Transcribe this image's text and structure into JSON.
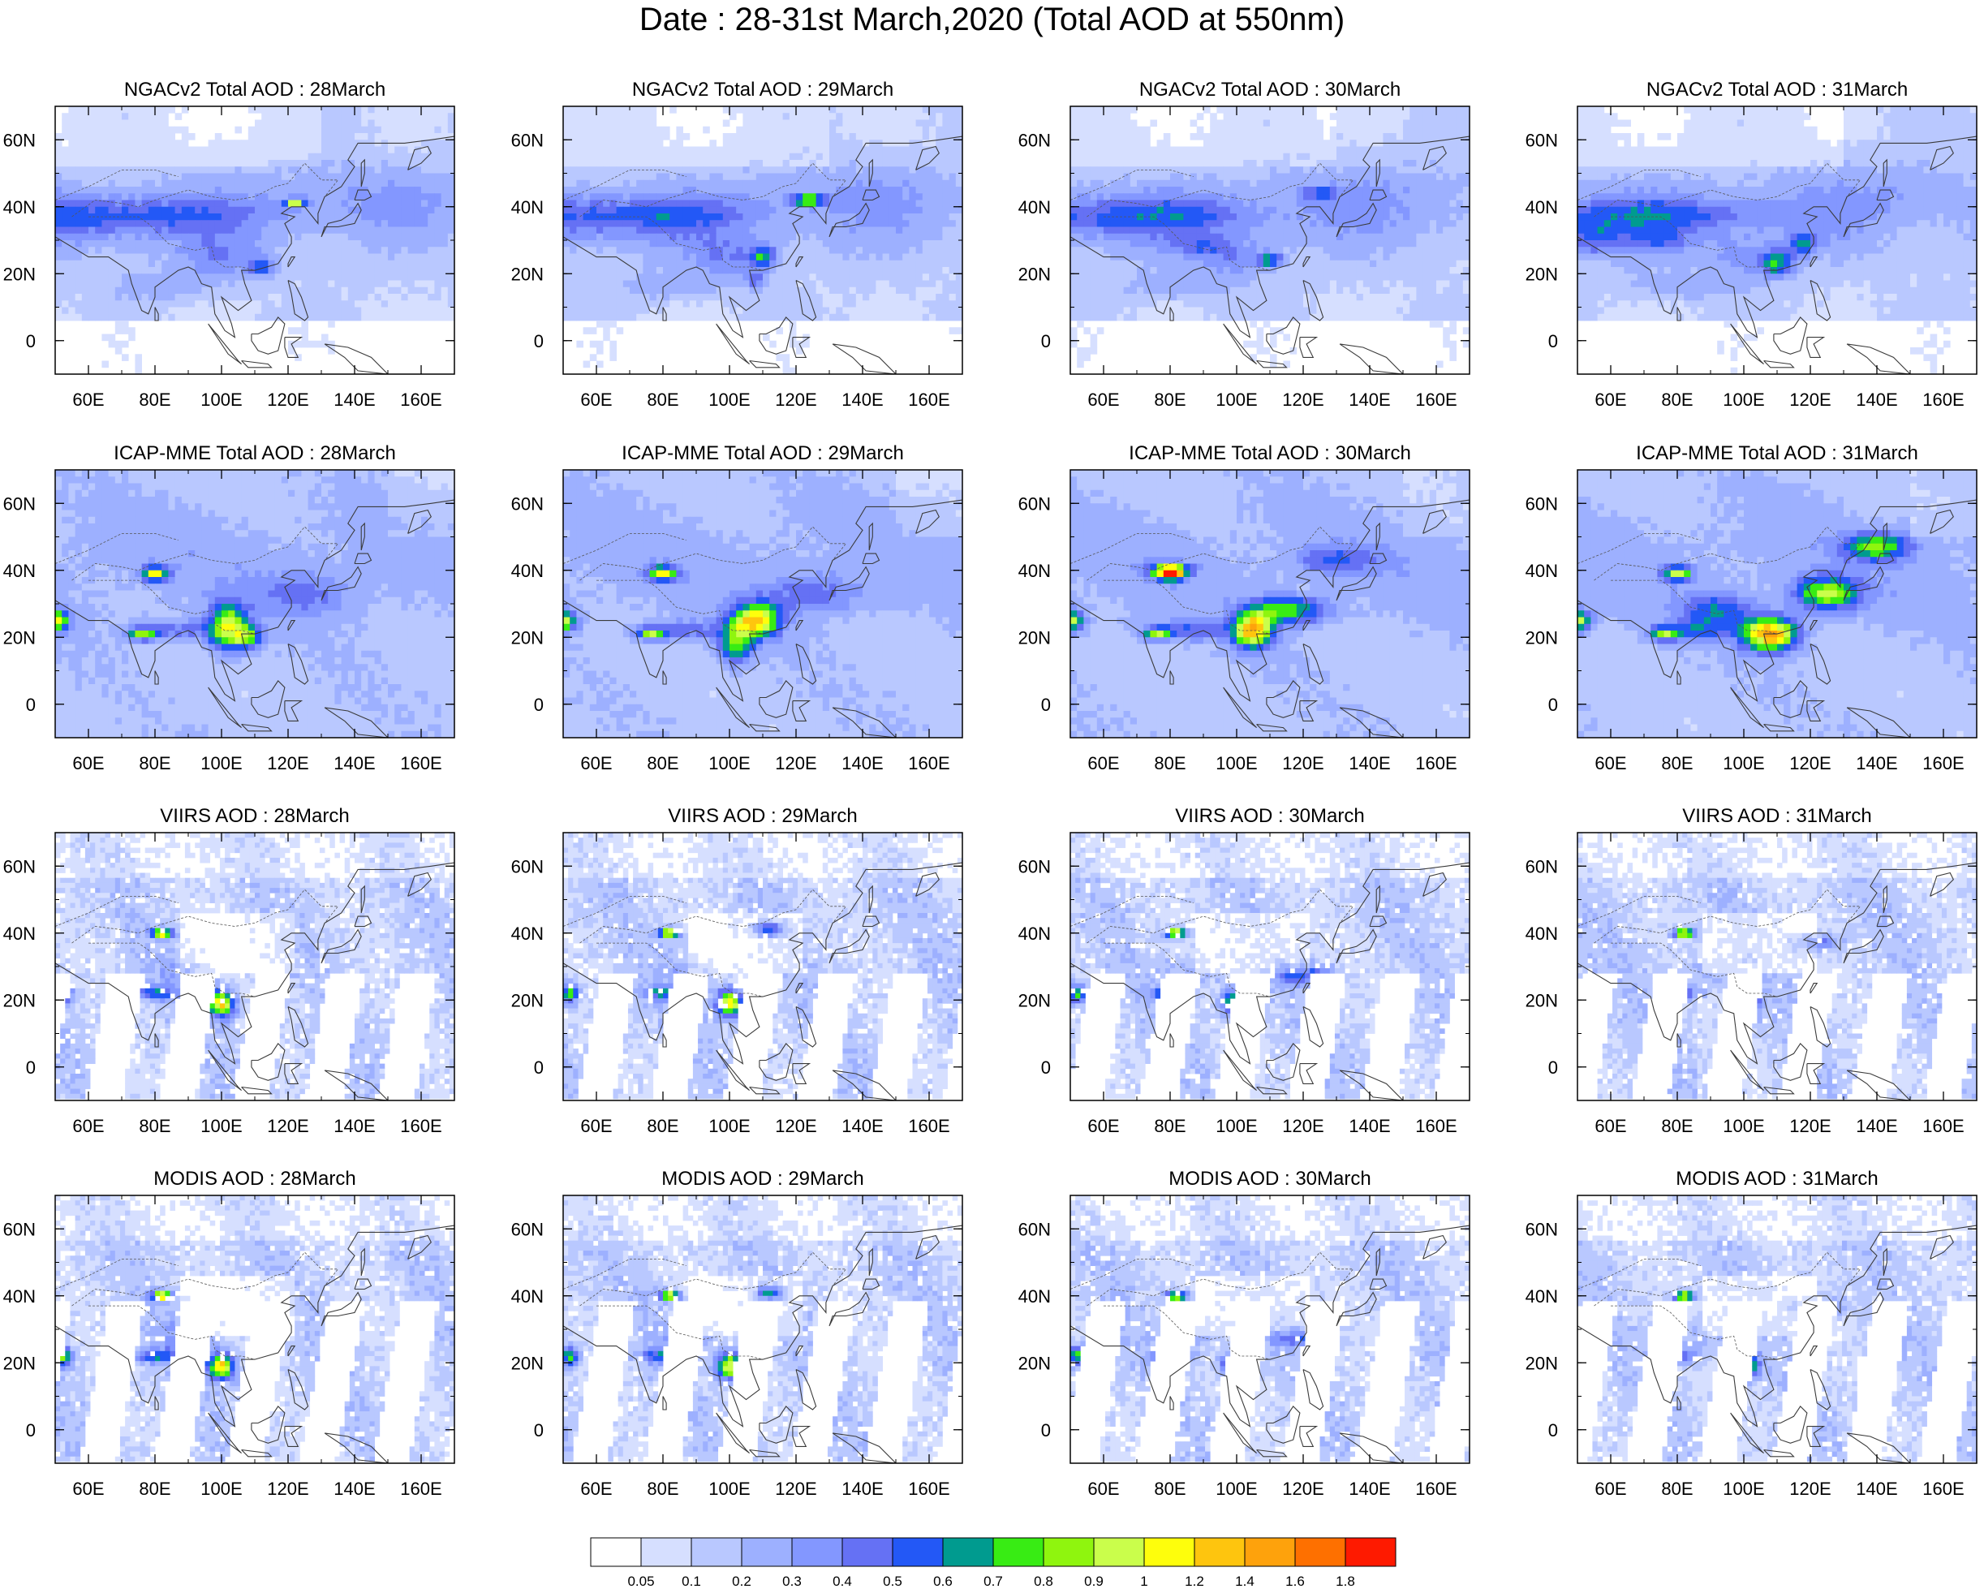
{
  "title": "Date : 28-31st March,2020 (Total AOD at 550nm)",
  "products": [
    "NGACv2 Total AOD",
    "ICAP-MME Total AOD",
    "VIIRS AOD",
    "MODIS AOD"
  ],
  "dates": [
    "28March",
    "29March",
    "30March",
    "31March"
  ],
  "panels": [
    [
      "NGACv2 Total AOD : 28March",
      "NGACv2 Total AOD : 29March",
      "NGACv2 Total AOD : 30March",
      "NGACv2 Total AOD : 31March"
    ],
    [
      "ICAP-MME Total AOD : 28March",
      "ICAP-MME Total AOD : 29March",
      "ICAP-MME Total AOD : 30March",
      "ICAP-MME Total AOD : 31March"
    ],
    [
      "VIIRS AOD : 28March",
      "VIIRS AOD : 29March",
      "VIIRS AOD : 30March",
      "VIIRS AOD : 31March"
    ],
    [
      "MODIS AOD : 28March",
      "MODIS AOD : 29March",
      "MODIS AOD : 30March",
      "MODIS AOD : 31March"
    ]
  ],
  "map_extent": {
    "lon_min": 50,
    "lon_max": 170,
    "lat_min": -10,
    "lat_max": 70
  },
  "lon_ticks": [
    {
      "v": 60,
      "label": "60E"
    },
    {
      "v": 80,
      "label": "80E"
    },
    {
      "v": 100,
      "label": "100E"
    },
    {
      "v": 120,
      "label": "120E"
    },
    {
      "v": 140,
      "label": "140E"
    },
    {
      "v": 160,
      "label": "160E"
    }
  ],
  "lat_ticks": [
    {
      "v": 60,
      "label": "60N"
    },
    {
      "v": 40,
      "label": "40N"
    },
    {
      "v": 20,
      "label": "20N"
    },
    {
      "v": 0,
      "label": "0"
    }
  ],
  "colorbar": {
    "colors": [
      "#ffffff",
      "#d6dfff",
      "#b9c8ff",
      "#9db0ff",
      "#8397ff",
      "#6571f4",
      "#2358f6",
      "#009b8f",
      "#38ec14",
      "#8ff50e",
      "#cafe4b",
      "#fefe0c",
      "#fec50e",
      "#fea20c",
      "#fe7000",
      "#fe1a00"
    ],
    "labels": [
      "0.05",
      "0.1",
      "0.2",
      "0.3",
      "0.4",
      "0.5",
      "0.6",
      "0.7",
      "0.8",
      "0.9",
      "1",
      "1.2",
      "1.4",
      "1.6",
      "1.8"
    ]
  }
}
